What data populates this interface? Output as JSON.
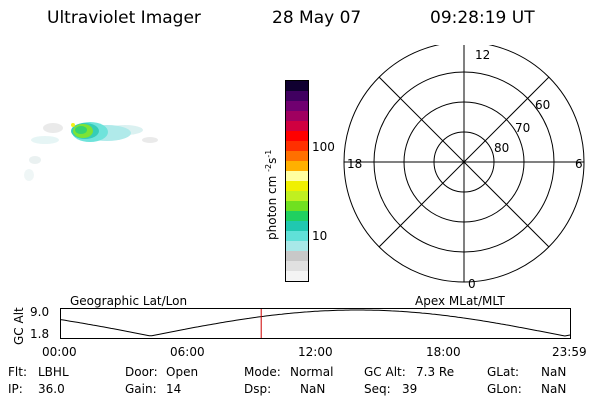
{
  "header": {
    "title": "Ultraviolet Imager",
    "date": "28 May 07",
    "time": "09:28:19 UT"
  },
  "colorbar": {
    "unit_label": "photon cm",
    "unit_exp_1": "-2",
    "unit_mid": "s",
    "unit_exp_2": "-1",
    "tick_100": "100",
    "tick_10": "10",
    "colors": [
      "#f4f4f4",
      "#e0e0e0",
      "#c8c8c8",
      "#a8e8e8",
      "#60e0d8",
      "#20c8b0",
      "#20d060",
      "#70e020",
      "#c0f020",
      "#f0f000",
      "#ffffa0",
      "#ffb000",
      "#ff7000",
      "#ff3000",
      "#ff0000",
      "#d00040",
      "#a00060",
      "#700070",
      "#400060",
      "#100030"
    ]
  },
  "polar_plot": {
    "mlt_top": "12",
    "mlt_left": "18",
    "mlt_right": "6",
    "mlt_bottom": "0",
    "lat_60": "60",
    "lat_70": "70",
    "lat_80": "80"
  },
  "timeline": {
    "left_label": "Geographic Lat/Lon",
    "right_label": "Apex MLat/MLT",
    "yaxis_title": "GC Alt",
    "ytick_top": "9.0",
    "ytick_bottom": "1.8",
    "xticks": [
      "00:00",
      "06:00",
      "12:00",
      "18:00",
      "23:59"
    ],
    "marker_time_hours": 9.47,
    "marker_color": "#cc0000"
  },
  "status": {
    "filter_label": "Flt:",
    "filter_value": "LBHL",
    "ip_label": "IP:",
    "ip_value": "36.0",
    "door_label": "Door:",
    "door_value": "Open",
    "gain_label": "Gain:",
    "gain_value": "14",
    "mode_label": "Mode:",
    "mode_value": "Normal",
    "dsp_label": "Dsp:",
    "dsp_value": "NaN",
    "gcalt_label": "GC Alt:",
    "gcalt_value": "7.3 Re",
    "seq_label": "Seq:",
    "seq_value": "39",
    "glat_label": "GLat:",
    "glat_value": "NaN",
    "glon_label": "GLon:",
    "glon_value": "NaN"
  }
}
